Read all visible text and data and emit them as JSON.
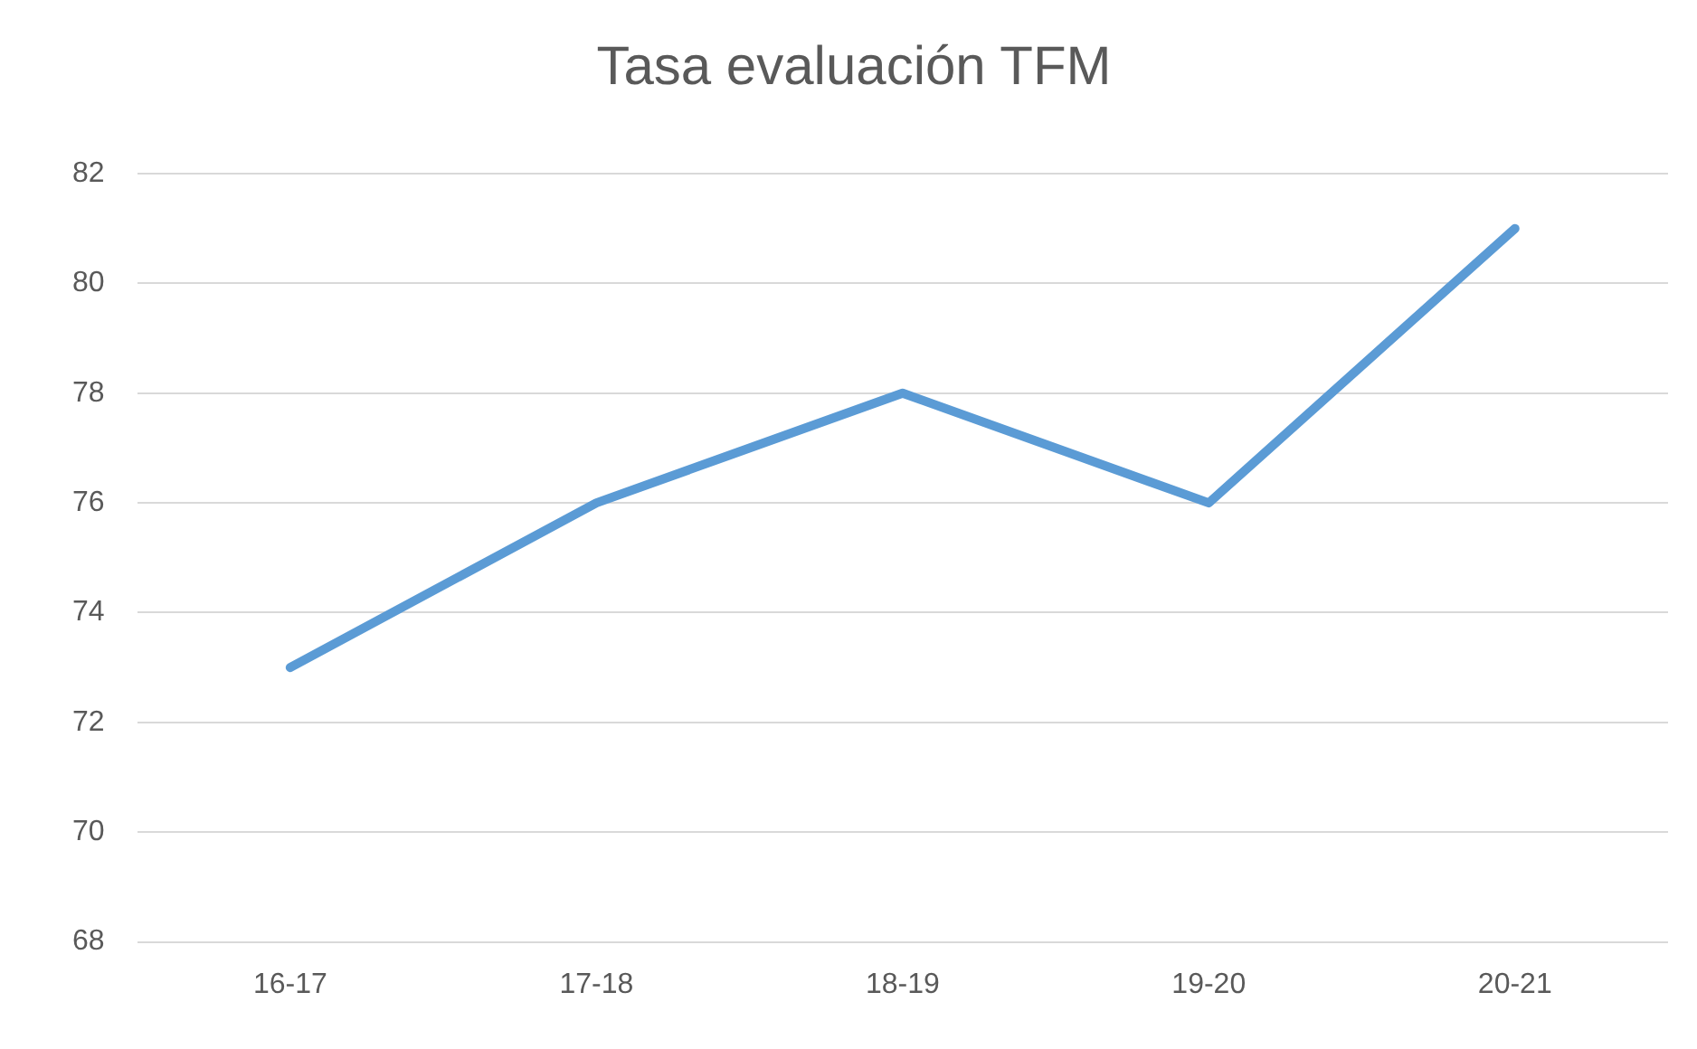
{
  "chart_data": {
    "type": "line",
    "title": "Tasa evaluación TFM",
    "categories": [
      "16-17",
      "17-18",
      "18-19",
      "19-20",
      "20-21"
    ],
    "series": [
      {
        "color": "#5b9bd5",
        "values": [
          73,
          76,
          78,
          76,
          81
        ]
      }
    ],
    "ylim": [
      68,
      82
    ],
    "yticks": [
      68,
      70,
      72,
      74,
      76,
      78,
      80,
      82
    ],
    "grid": "y",
    "legend": false,
    "marker": "none",
    "line_style": "solid"
  }
}
